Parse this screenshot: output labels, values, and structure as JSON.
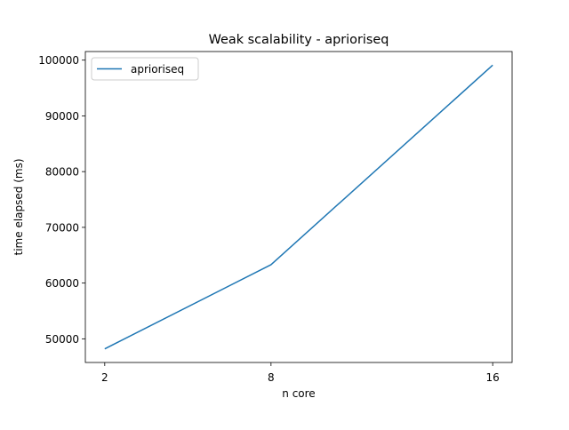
{
  "chart_data": {
    "type": "line",
    "title": "Weak scalability - aprioriseq",
    "xlabel": "n core",
    "ylabel": "time elapsed (ms)",
    "categories": [
      "2",
      "8",
      "16"
    ],
    "series": [
      {
        "name": "aprioriseq",
        "values": [
          48200,
          63300,
          99100
        ],
        "color": "#1f77b4"
      }
    ],
    "yticks": [
      50000,
      60000,
      70000,
      80000,
      90000,
      100000
    ],
    "ylim": [
      45755,
      101545
    ],
    "grid": false,
    "legend_position": "top-left"
  }
}
